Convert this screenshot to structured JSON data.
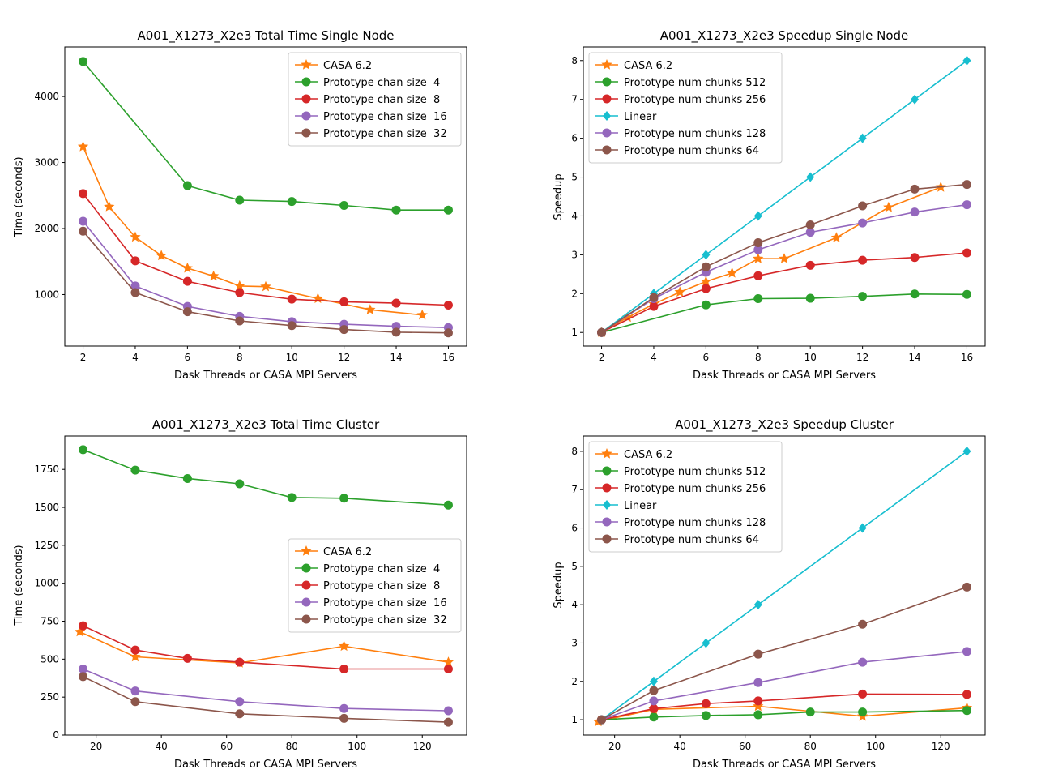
{
  "chart_data": [
    {
      "type": "line",
      "title": "A001_X1273_X2e3 Total Time Single Node",
      "xlabel": "Dask Threads or CASA MPI Servers",
      "ylabel": "Time (seconds)",
      "xlim": [
        1.3,
        16.7
      ],
      "ylim": [
        220,
        4750
      ],
      "xticks": [
        2,
        4,
        6,
        8,
        10,
        12,
        14,
        16
      ],
      "yticks": [
        1000,
        2000,
        3000,
        4000
      ],
      "legend_position": "upper right",
      "grid": false,
      "series": [
        {
          "name": "CASA 6.2",
          "color": "#ff7f0e",
          "marker": "star",
          "x": [
            2,
            3,
            4,
            5,
            6,
            7,
            8,
            9,
            11,
            13,
            15
          ],
          "y": [
            3240,
            2330,
            1870,
            1590,
            1400,
            1280,
            1130,
            1120,
            940,
            770,
            690
          ]
        },
        {
          "name": "Prototype chan size  4",
          "color": "#2ca02c",
          "marker": "circle",
          "x": [
            2,
            6,
            8,
            10,
            12,
            14,
            16
          ],
          "y": [
            4530,
            2650,
            2430,
            2410,
            2350,
            2280,
            2280
          ]
        },
        {
          "name": "Prototype chan size  8",
          "color": "#d62728",
          "marker": "circle",
          "x": [
            2,
            4,
            6,
            8,
            10,
            12,
            14,
            16
          ],
          "y": [
            2530,
            1510,
            1200,
            1030,
            930,
            890,
            870,
            840
          ]
        },
        {
          "name": "Prototype chan size  16",
          "color": "#9467bd",
          "marker": "circle",
          "x": [
            2,
            4,
            6,
            8,
            10,
            12,
            14,
            16
          ],
          "y": [
            2110,
            1130,
            820,
            670,
            590,
            550,
            520,
            500
          ]
        },
        {
          "name": "Prototype chan size  32",
          "color": "#8c564b",
          "marker": "circle",
          "x": [
            2,
            4,
            6,
            8,
            10,
            12,
            14,
            16
          ],
          "y": [
            1960,
            1030,
            740,
            600,
            530,
            470,
            430,
            420
          ]
        }
      ]
    },
    {
      "type": "line",
      "title": "A001_X1273_X2e3 Speedup Single Node",
      "xlabel": "Dask Threads or CASA MPI Servers",
      "ylabel": "Speedup",
      "xlim": [
        1.3,
        16.7
      ],
      "ylim": [
        0.65,
        8.35
      ],
      "xticks": [
        2,
        4,
        6,
        8,
        10,
        12,
        14,
        16
      ],
      "yticks": [
        1,
        2,
        3,
        4,
        5,
        6,
        7,
        8
      ],
      "legend_position": "upper left",
      "grid": false,
      "series": [
        {
          "name": "CASA 6.2",
          "color": "#ff7f0e",
          "marker": "star",
          "x": [
            2,
            3,
            4,
            5,
            6,
            7,
            8,
            9,
            11,
            13,
            15
          ],
          "y": [
            1.0,
            1.39,
            1.73,
            2.04,
            2.31,
            2.53,
            2.9,
            2.9,
            3.44,
            4.22,
            4.74
          ]
        },
        {
          "name": "Prototype num chunks 512",
          "color": "#2ca02c",
          "marker": "circle",
          "x": [
            2,
            6,
            8,
            10,
            12,
            14,
            16
          ],
          "y": [
            1.0,
            1.71,
            1.87,
            1.88,
            1.93,
            1.99,
            1.98
          ]
        },
        {
          "name": "Prototype num chunks 256",
          "color": "#d62728",
          "marker": "circle",
          "x": [
            2,
            4,
            6,
            8,
            10,
            12,
            14,
            16
          ],
          "y": [
            1.0,
            1.67,
            2.13,
            2.46,
            2.73,
            2.86,
            2.93,
            3.05
          ]
        },
        {
          "name": "Linear",
          "color": "#17becf",
          "marker": "diamond",
          "x": [
            2,
            4,
            6,
            8,
            10,
            12,
            14,
            16
          ],
          "y": [
            1,
            2,
            3,
            4,
            5,
            6,
            7,
            8
          ]
        },
        {
          "name": "Prototype num chunks 128",
          "color": "#9467bd",
          "marker": "circle",
          "x": [
            2,
            4,
            6,
            8,
            10,
            12,
            14,
            16
          ],
          "y": [
            1.0,
            1.87,
            2.55,
            3.13,
            3.58,
            3.82,
            4.1,
            4.29
          ]
        },
        {
          "name": "Prototype num chunks 64",
          "color": "#8c564b",
          "marker": "circle",
          "x": [
            2,
            4,
            6,
            8,
            10,
            12,
            14,
            16
          ],
          "y": [
            1.0,
            1.9,
            2.69,
            3.31,
            3.77,
            4.26,
            4.69,
            4.81
          ]
        }
      ]
    },
    {
      "type": "line",
      "title": "A001_X1273_X2e3 Total Time Cluster",
      "xlabel": "Dask Threads or CASA MPI Servers",
      "ylabel": "Time (seconds)",
      "xlim": [
        10.4,
        133.6
      ],
      "ylim": [
        0,
        1970
      ],
      "xticks": [
        20,
        40,
        60,
        80,
        100,
        120
      ],
      "yticks": [
        0,
        250,
        500,
        750,
        1000,
        1250,
        1500,
        1750
      ],
      "legend_position": "center right",
      "grid": false,
      "series": [
        {
          "name": "CASA 6.2",
          "color": "#ff7f0e",
          "marker": "star",
          "x": [
            15,
            32,
            64,
            96,
            128
          ],
          "y": [
            680,
            515,
            475,
            585,
            480
          ]
        },
        {
          "name": "Prototype chan size  4",
          "color": "#2ca02c",
          "marker": "circle",
          "x": [
            16,
            32,
            48,
            64,
            80,
            96,
            128
          ],
          "y": [
            1880,
            1745,
            1690,
            1655,
            1565,
            1560,
            1515
          ]
        },
        {
          "name": "Prototype chan size  8",
          "color": "#d62728",
          "marker": "circle",
          "x": [
            16,
            32,
            48,
            64,
            96,
            128
          ],
          "y": [
            720,
            560,
            505,
            480,
            435,
            435
          ]
        },
        {
          "name": "Prototype chan size  16",
          "color": "#9467bd",
          "marker": "circle",
          "x": [
            16,
            32,
            64,
            96,
            128
          ],
          "y": [
            435,
            290,
            220,
            175,
            160
          ]
        },
        {
          "name": "Prototype chan size  32",
          "color": "#8c564b",
          "marker": "circle",
          "x": [
            16,
            32,
            64,
            96,
            128
          ],
          "y": [
            385,
            220,
            140,
            110,
            85
          ]
        }
      ]
    },
    {
      "type": "line",
      "title": "A001_X1273_X2e3 Speedup Cluster",
      "xlabel": "Dask Threads or CASA MPI Servers",
      "ylabel": "Speedup",
      "xlim": [
        10.4,
        133.6
      ],
      "ylim": [
        0.6,
        8.4
      ],
      "xticks": [
        20,
        40,
        60,
        80,
        100,
        120
      ],
      "yticks": [
        1,
        2,
        3,
        4,
        5,
        6,
        7,
        8
      ],
      "legend_position": "upper left",
      "grid": false,
      "series": [
        {
          "name": "CASA 6.2",
          "color": "#ff7f0e",
          "marker": "star",
          "x": [
            15,
            32,
            64,
            96,
            128
          ],
          "y": [
            0.95,
            1.27,
            1.35,
            1.09,
            1.31
          ]
        },
        {
          "name": "Prototype num chunks 512",
          "color": "#2ca02c",
          "marker": "circle",
          "x": [
            16,
            32,
            48,
            64,
            80,
            96,
            128
          ],
          "y": [
            1.0,
            1.07,
            1.11,
            1.13,
            1.2,
            1.2,
            1.24
          ]
        },
        {
          "name": "Prototype num chunks 256",
          "color": "#d62728",
          "marker": "circle",
          "x": [
            16,
            32,
            48,
            64,
            96,
            128
          ],
          "y": [
            1.0,
            1.29,
            1.42,
            1.49,
            1.67,
            1.66
          ]
        },
        {
          "name": "Linear",
          "color": "#17becf",
          "marker": "diamond",
          "x": [
            16,
            32,
            48,
            64,
            96,
            128
          ],
          "y": [
            1,
            2,
            3,
            4,
            6,
            8
          ]
        },
        {
          "name": "Prototype num chunks 128",
          "color": "#9467bd",
          "marker": "circle",
          "x": [
            16,
            32,
            64,
            96,
            128
          ],
          "y": [
            1.0,
            1.49,
            1.97,
            2.5,
            2.78
          ]
        },
        {
          "name": "Prototype num chunks 64",
          "color": "#8c564b",
          "marker": "circle",
          "x": [
            16,
            32,
            64,
            96,
            128
          ],
          "y": [
            1.0,
            1.76,
            2.71,
            3.49,
            4.46
          ]
        }
      ]
    }
  ]
}
